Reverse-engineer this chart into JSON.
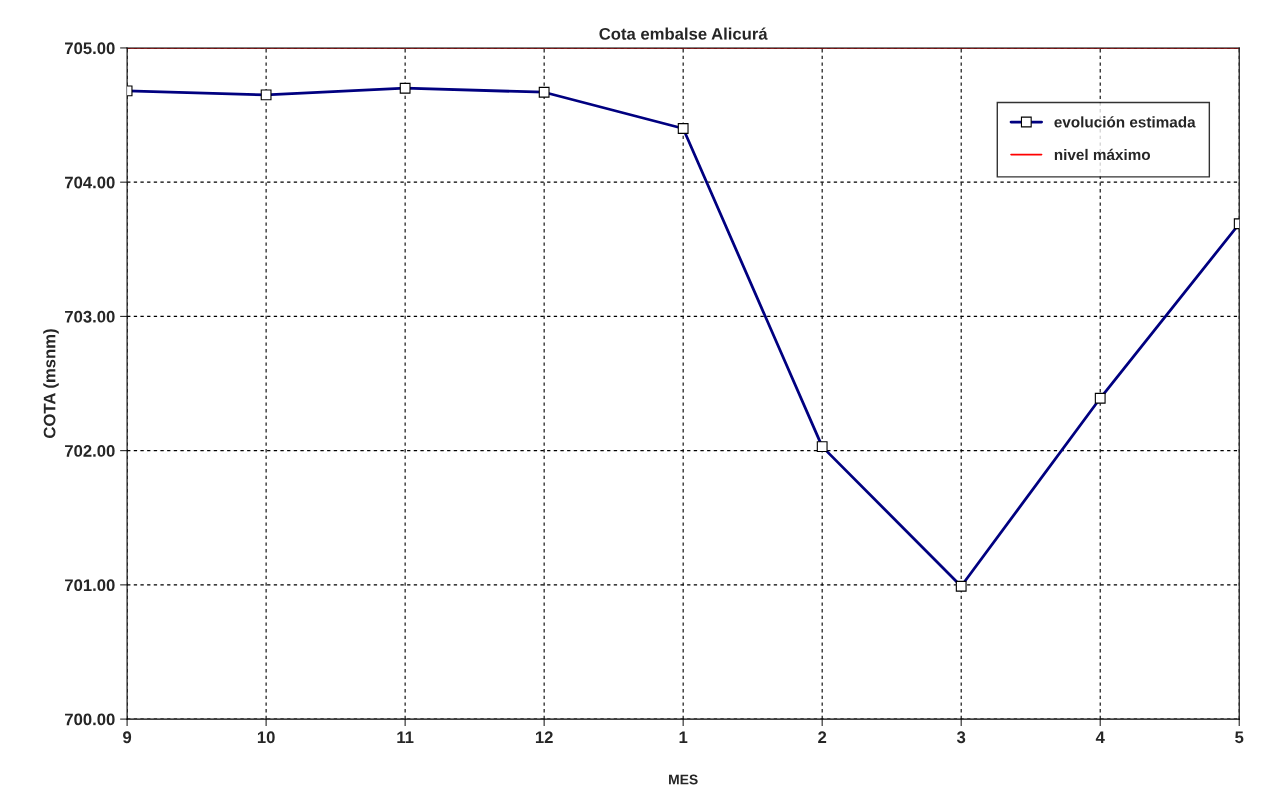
{
  "chart_data": {
    "type": "line",
    "title": "Cota embalse Alicurá",
    "xlabel": "MES",
    "ylabel": "COTA (msnm)",
    "categories": [
      "9",
      "10",
      "11",
      "12",
      "1",
      "2",
      "3",
      "4",
      "5"
    ],
    "series": [
      {
        "name": "evolución estimada",
        "color": "#000080",
        "values": [
          704.68,
          704.65,
          704.7,
          704.67,
          704.4,
          702.03,
          700.99,
          702.39,
          703.69
        ]
      }
    ],
    "ref_lines": [
      {
        "axis": "y",
        "value": 705,
        "label": "nivel máximo",
        "color": "#ff0000",
        "line_style": "solid"
      }
    ],
    "ylim": [
      700,
      705
    ],
    "yticks": [
      {
        "value": 700,
        "label": "700.00"
      },
      {
        "value": 701,
        "label": "701.00"
      },
      {
        "value": 702,
        "label": "702.00"
      },
      {
        "value": 703,
        "label": "703.00"
      },
      {
        "value": 704,
        "label": "704.00"
      },
      {
        "value": 705,
        "label": "705.00"
      }
    ],
    "grid": true,
    "legend": "top right",
    "marker": "square",
    "line_style": "solid"
  }
}
